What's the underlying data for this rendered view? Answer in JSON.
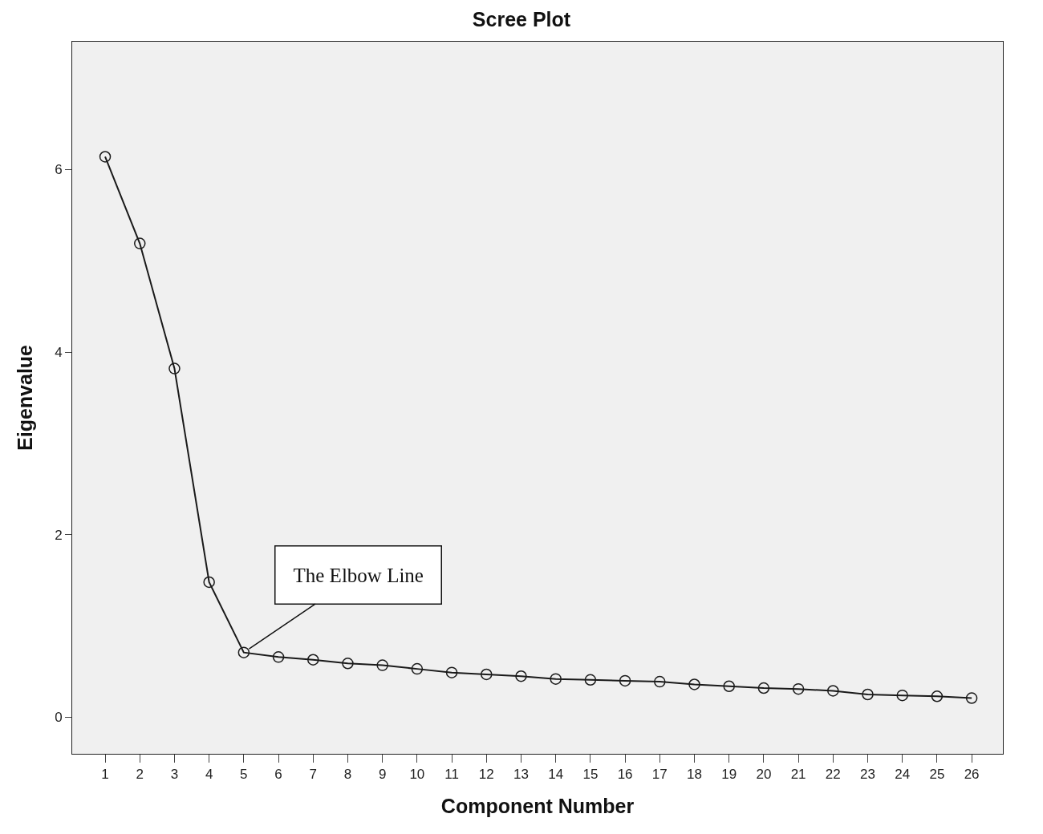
{
  "chart_data": {
    "type": "line",
    "title": "Scree Plot",
    "xlabel": "Component Number",
    "ylabel": "Eigenvalue",
    "x": [
      1,
      2,
      3,
      4,
      5,
      6,
      7,
      8,
      9,
      10,
      11,
      12,
      13,
      14,
      15,
      16,
      17,
      18,
      19,
      20,
      21,
      22,
      23,
      24,
      25,
      26
    ],
    "series": [
      {
        "color": "#1a1a1a",
        "values": [
          6.14,
          5.19,
          3.82,
          1.48,
          0.71,
          0.66,
          0.63,
          0.59,
          0.57,
          0.53,
          0.49,
          0.47,
          0.45,
          0.42,
          0.41,
          0.4,
          0.39,
          0.36,
          0.34,
          0.32,
          0.31,
          0.29,
          0.25,
          0.24,
          0.23,
          0.21
        ]
      }
    ],
    "xlim": [
      0.05,
      26.9
    ],
    "xticks": [
      1,
      2,
      3,
      4,
      5,
      6,
      7,
      8,
      9,
      10,
      11,
      12,
      13,
      14,
      15,
      16,
      17,
      18,
      19,
      20,
      21,
      22,
      23,
      24,
      25,
      26
    ],
    "ylim": [
      -0.4,
      7.4
    ],
    "yticks": [
      0,
      2,
      4,
      6
    ],
    "annotations": [
      {
        "text": "The Elbow Line",
        "x": 5,
        "y": 0.71
      }
    ],
    "grid": false,
    "marker": "circle",
    "line_style": "solid"
  }
}
